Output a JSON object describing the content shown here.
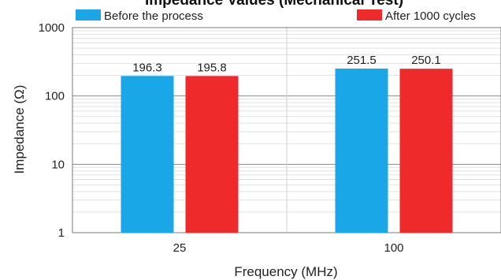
{
  "chart_data": {
    "type": "bar",
    "title": "Impedance Values (Mechanical Test)",
    "xlabel": "Frequency (MHz)",
    "ylabel": "Impedance (Ω)",
    "categories": [
      "25",
      "100"
    ],
    "yscale": "log",
    "ylim": [
      1,
      1000
    ],
    "yticks": [
      "1",
      "10",
      "100",
      "1000"
    ],
    "grid": true,
    "legend_position": "top",
    "series": [
      {
        "name": "Before the process",
        "color": "#1aa7e8",
        "values": [
          196.3,
          251.5
        ]
      },
      {
        "name": "After 1000 cycles",
        "color": "#ee2a2a",
        "values": [
          195.8,
          250.1
        ]
      }
    ]
  }
}
